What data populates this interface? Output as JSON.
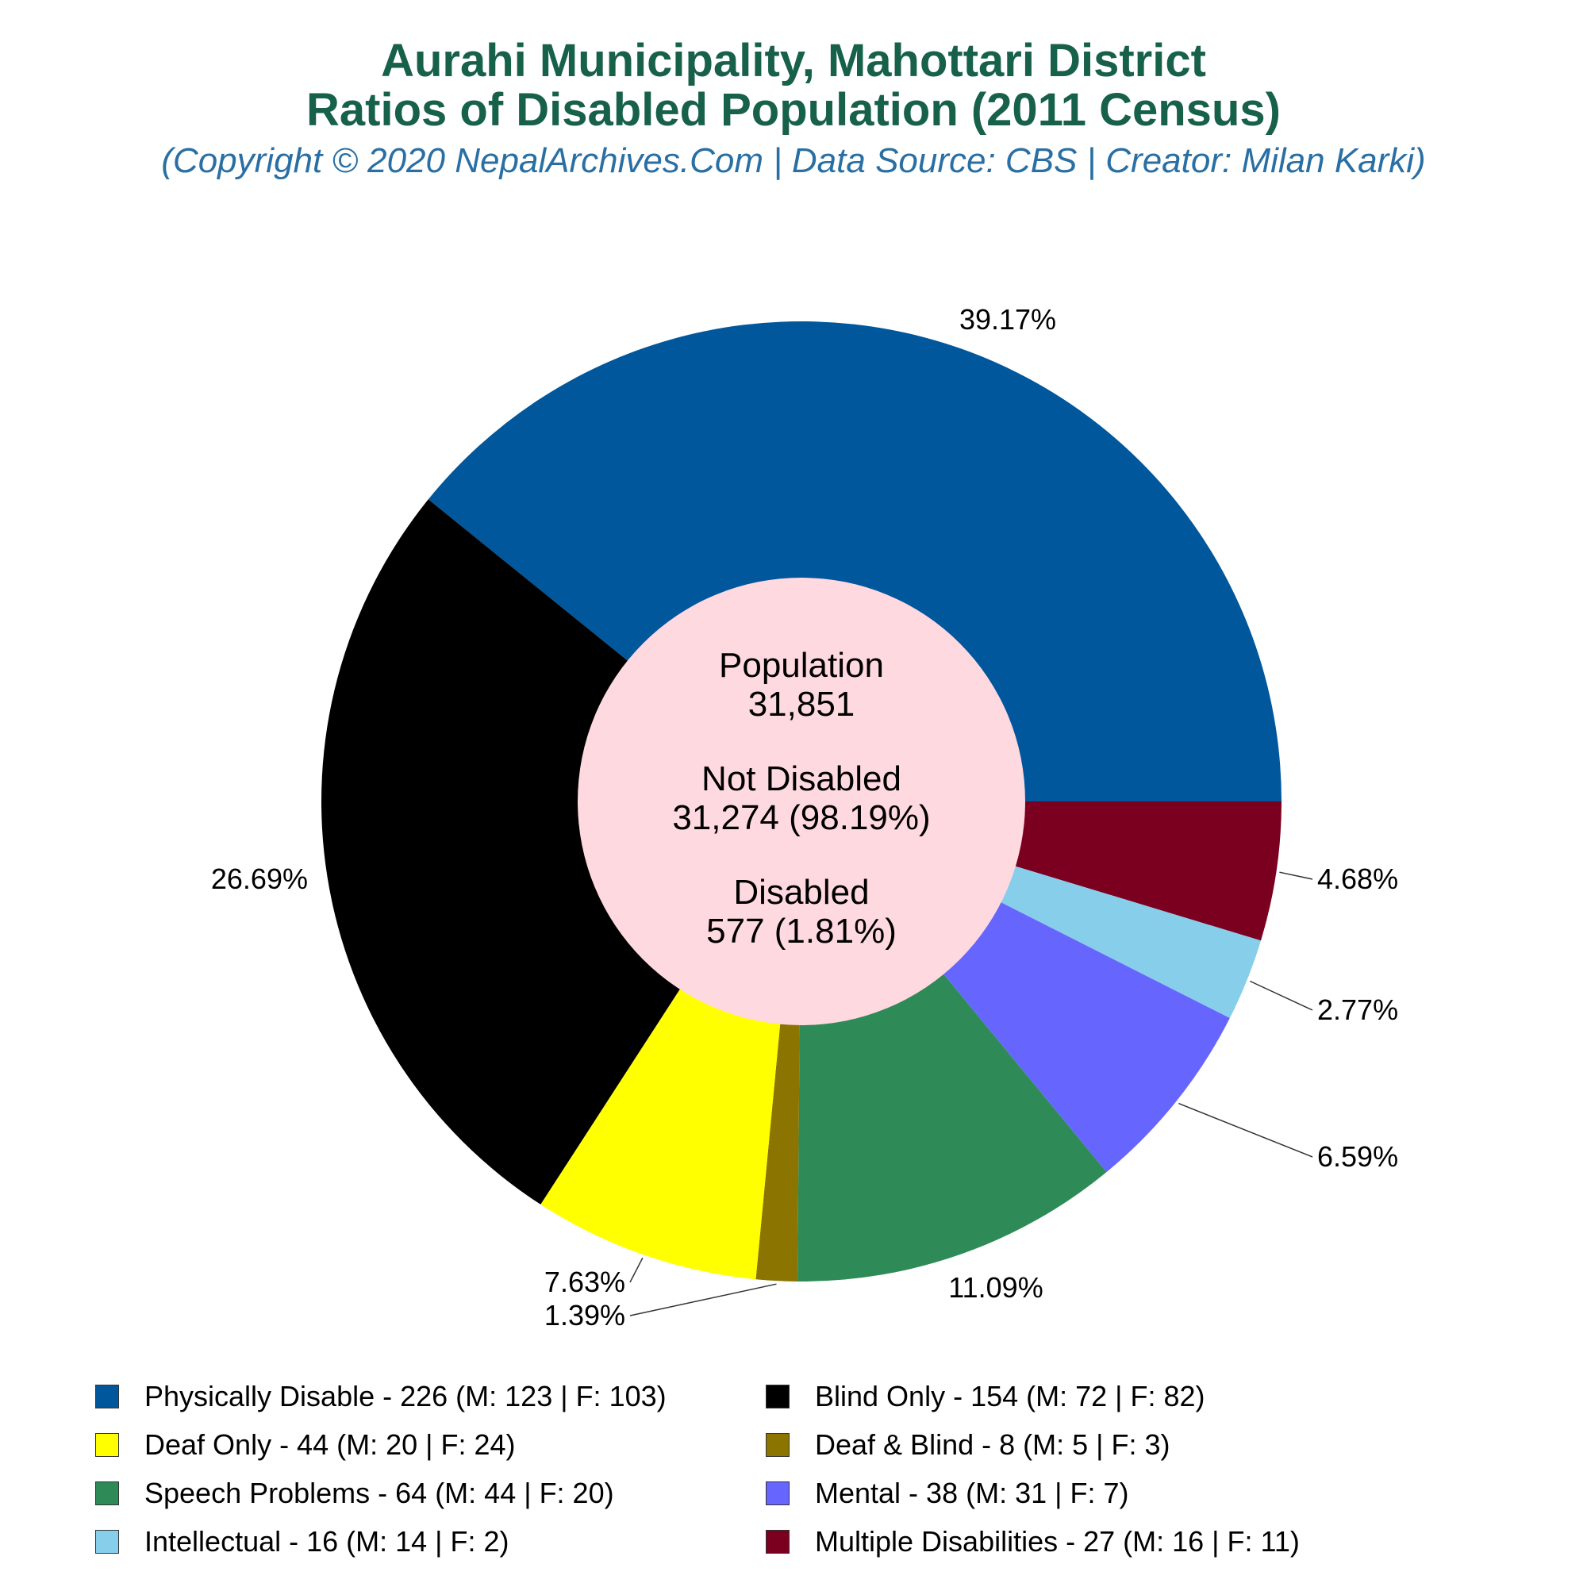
{
  "header": {
    "title_line1": "Aurahi Municipality, Mahottari District",
    "title_line2": "Ratios of Disabled Population (2011 Census)",
    "subtitle": "(Copyright © 2020 NepalArchives.Com | Data Source: CBS | Creator: Milan Karki)"
  },
  "center": {
    "population_label": "Population",
    "population_value": "31,851",
    "not_disabled_label": "Not Disabled",
    "not_disabled_value": "31,274 (98.19%)",
    "disabled_label": "Disabled",
    "disabled_value": "577 (1.81%)"
  },
  "chart_data": {
    "type": "pie",
    "style": "donut",
    "slices": [
      {
        "name": "Physically Disable",
        "value": 226,
        "percent_label": "39.17%",
        "legend": "Physically Disable - 226 (M: 123 | F: 103)",
        "color": "#01579b"
      },
      {
        "name": "Multiple Disabilities",
        "value": 27,
        "percent_label": "4.68%",
        "legend": "Multiple Disabilities - 27 (M: 16 | F: 11)",
        "color": "#7b0020"
      },
      {
        "name": "Intellectual",
        "value": 16,
        "percent_label": "2.77%",
        "legend": "Intellectual - 16 (M: 14 | F: 2)",
        "color": "#87ceeb"
      },
      {
        "name": "Mental",
        "value": 38,
        "percent_label": "6.59%",
        "legend": "Mental - 38 (M: 31 | F: 7)",
        "color": "#6666ff"
      },
      {
        "name": "Speech Problems",
        "value": 64,
        "percent_label": "11.09%",
        "legend": "Speech Problems - 64 (M: 44 | F: 20)",
        "color": "#2e8b57"
      },
      {
        "name": "Deaf & Blind",
        "value": 8,
        "percent_label": "1.39%",
        "legend": "Deaf & Blind - 8 (M: 5 | F: 3)",
        "color": "#8b7500"
      },
      {
        "name": "Deaf Only",
        "value": 44,
        "percent_label": "7.63%",
        "legend": "Deaf Only - 44 (M: 20 | F: 24)",
        "color": "#ffff00"
      },
      {
        "name": "Blind Only",
        "value": 154,
        "percent_label": "26.69%",
        "legend": "Blind Only - 154 (M: 72 | F: 82)",
        "color": "#000000"
      }
    ],
    "legend_order": [
      "Physically Disable",
      "Blind Only",
      "Deaf Only",
      "Deaf & Blind",
      "Speech Problems",
      "Mental",
      "Intellectual",
      "Multiple Disabilities"
    ],
    "legend_placement": "bottom",
    "center_color": "#ffd9e0"
  }
}
